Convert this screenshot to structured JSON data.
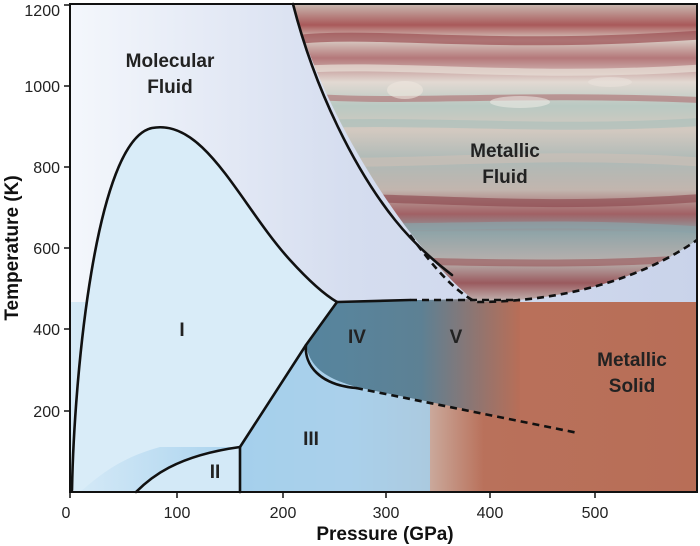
{
  "axes": {
    "x_title": "Pressure (GPa)",
    "y_title": "Temperature (K)",
    "x_ticks": [
      "0",
      "100",
      "200",
      "300",
      "400",
      "500"
    ],
    "y_ticks": [
      "200",
      "400",
      "600",
      "800",
      "1000",
      "1200"
    ]
  },
  "regions": {
    "molecular_fluid_line1": "Molecular",
    "molecular_fluid_line2": "Fluid",
    "metallic_fluid_line1": "Metallic",
    "metallic_fluid_line2": "Fluid",
    "metallic_solid_line1": "Metallic",
    "metallic_solid_line2": "Solid",
    "phase_1": "I",
    "phase_2": "II",
    "phase_3": "III",
    "phase_4": "IV",
    "phase_5": "V"
  },
  "colors": {
    "molecular_fluid": "#dfe6f3",
    "solid_phase": "#d9ecf8",
    "phase_3": "#9fcbe8",
    "phase_4_5": "#4f7f97",
    "metallic_solid": "#b9705a",
    "boundary": "#111111"
  }
}
